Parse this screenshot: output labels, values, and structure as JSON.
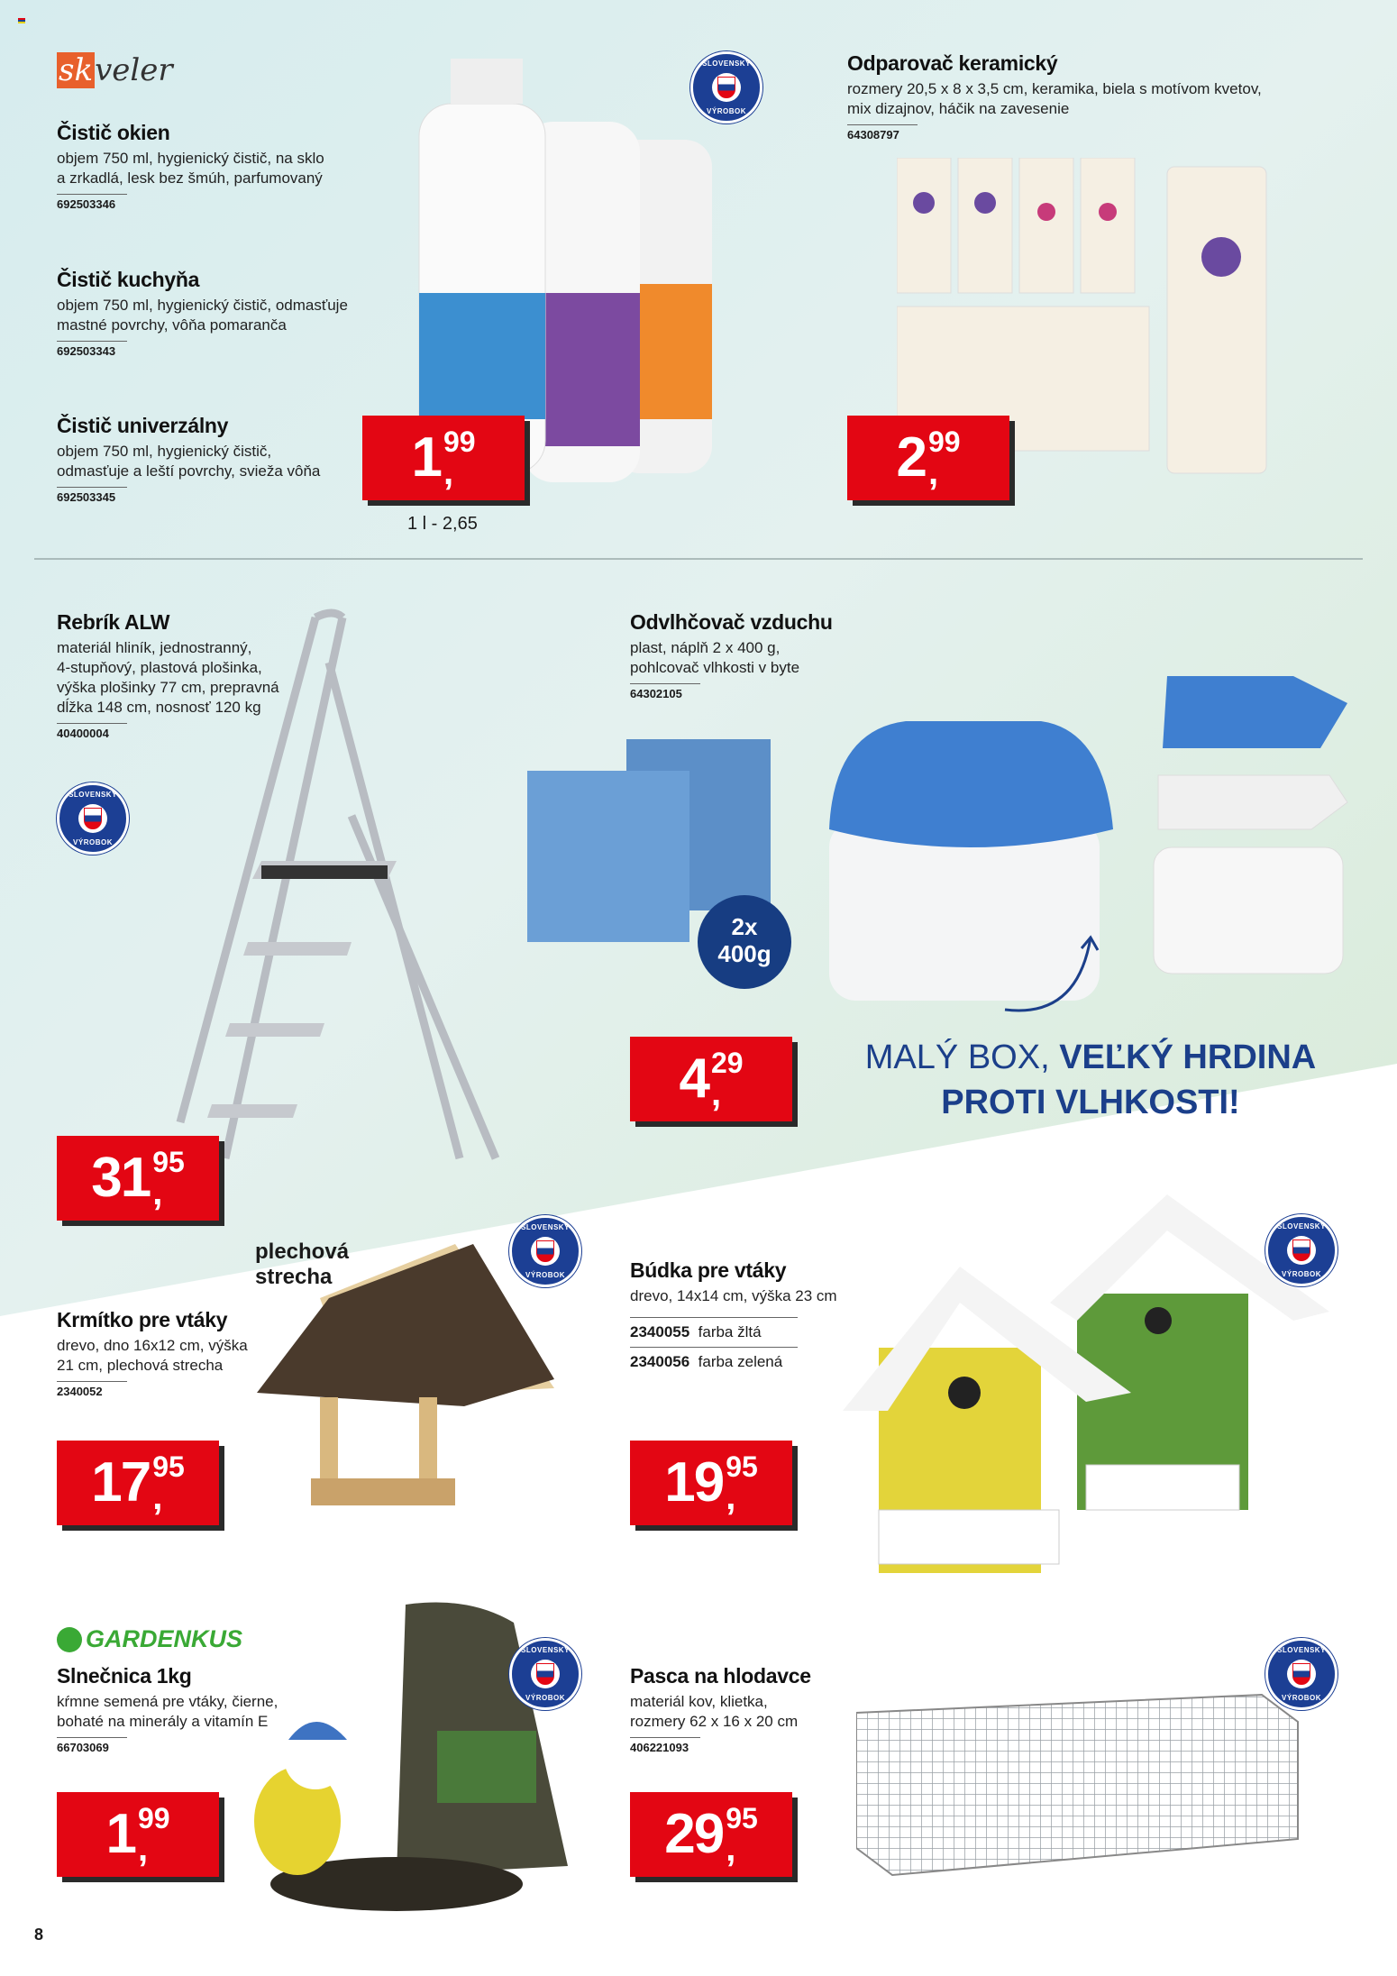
{
  "page_number": "8",
  "colors": {
    "price_red": "#e30613",
    "slogan_blue": "#1b3f8a",
    "badge_blue": "#1c3f94",
    "gardenkus_green": "#3aa935",
    "skveler_orange": "#e8602c"
  },
  "badge": {
    "top": "SLOVENSKÝ",
    "bottom": "VÝROBOK"
  },
  "brands": {
    "skveler": "skveler",
    "gardenkus": "GARDENKUS"
  },
  "cleaners": [
    {
      "title": "Čistič okien",
      "desc": [
        "objem 750 ml, hygienický čistič, na sklo",
        "a zrkadlá, lesk bez šmúh, parfumovaný"
      ],
      "code": "692503346"
    },
    {
      "title": "Čistič kuchyňa",
      "desc": [
        "objem 750 ml, hygienický čistič, odmasťuje",
        "mastné povrchy, vôňa pomaranča"
      ],
      "code": "692503343"
    },
    {
      "title": "Čistič univerzálny",
      "desc": [
        "objem 750 ml, hygienický čistič,",
        "odmasťuje a leští povrchy, svieža vôňa"
      ],
      "code": "692503345"
    }
  ],
  "cleaners_price": {
    "int": "1",
    "cents": "99",
    "unit_price": "1 l - 2,65"
  },
  "evaporator": {
    "title": "Odparovač keramický",
    "desc": [
      "rozmery 20,5 x 8 x 3,5 cm, keramika, biela s motívom kvetov,",
      "mix dizajnov, háčik na zavesenie"
    ],
    "code": "64308797",
    "price": {
      "int": "2",
      "cents": "99"
    }
  },
  "ladder": {
    "title": "Rebrík ALW",
    "desc": [
      "materiál hliník, jednostranný,",
      "4-stupňový, plastová plošinka,",
      "výška plošinky 77 cm, prepravná",
      "dĺžka 148 cm, nosnosť 120 kg"
    ],
    "code": "40400004",
    "price": {
      "int": "31",
      "cents": "95"
    }
  },
  "dehumidifier": {
    "title": "Odvlhčovač vzduchu",
    "desc": [
      "plast, náplň 2 x 400 g,",
      "pohlcovač vlhkosti v byte"
    ],
    "code": "64302105",
    "price": {
      "int": "4",
      "cents": "29"
    },
    "refill_badge": [
      "2x",
      "400g"
    ]
  },
  "slogan": {
    "line1_regular": "MALÝ BOX, ",
    "line1_bold": "VEĽKÝ HRDINA",
    "line2": "PROTI VLHKOSTI!"
  },
  "feeder": {
    "callout": [
      "plechová",
      "strecha"
    ],
    "title": "Krmítko pre vtáky",
    "desc": [
      "drevo, dno 16x12 cm, výška",
      "21 cm, plechová strecha"
    ],
    "code": "2340052",
    "price": {
      "int": "17",
      "cents": "95"
    }
  },
  "birdhouse": {
    "title": "Búdka pre vtáky",
    "desc": [
      "drevo, 14x14 cm, výška 23 cm"
    ],
    "variants": [
      {
        "code": "2340055",
        "label": "farba žltá"
      },
      {
        "code": "2340056",
        "label": "farba zelená"
      }
    ],
    "price": {
      "int": "19",
      "cents": "95"
    }
  },
  "sunflower": {
    "title": "Slnečnica 1kg",
    "desc": [
      "kŕmne semená pre vtáky, čierne,",
      "bohaté na minerály a vitamín E"
    ],
    "code": "66703069",
    "price": {
      "int": "1",
      "cents": "99"
    }
  },
  "trap": {
    "title": "Pasca na hlodavce",
    "desc": [
      "materiál kov, klietka,",
      "rozmery 62 x 16 x 20 cm"
    ],
    "code": "406221093",
    "price": {
      "int": "29",
      "cents": "95"
    }
  }
}
